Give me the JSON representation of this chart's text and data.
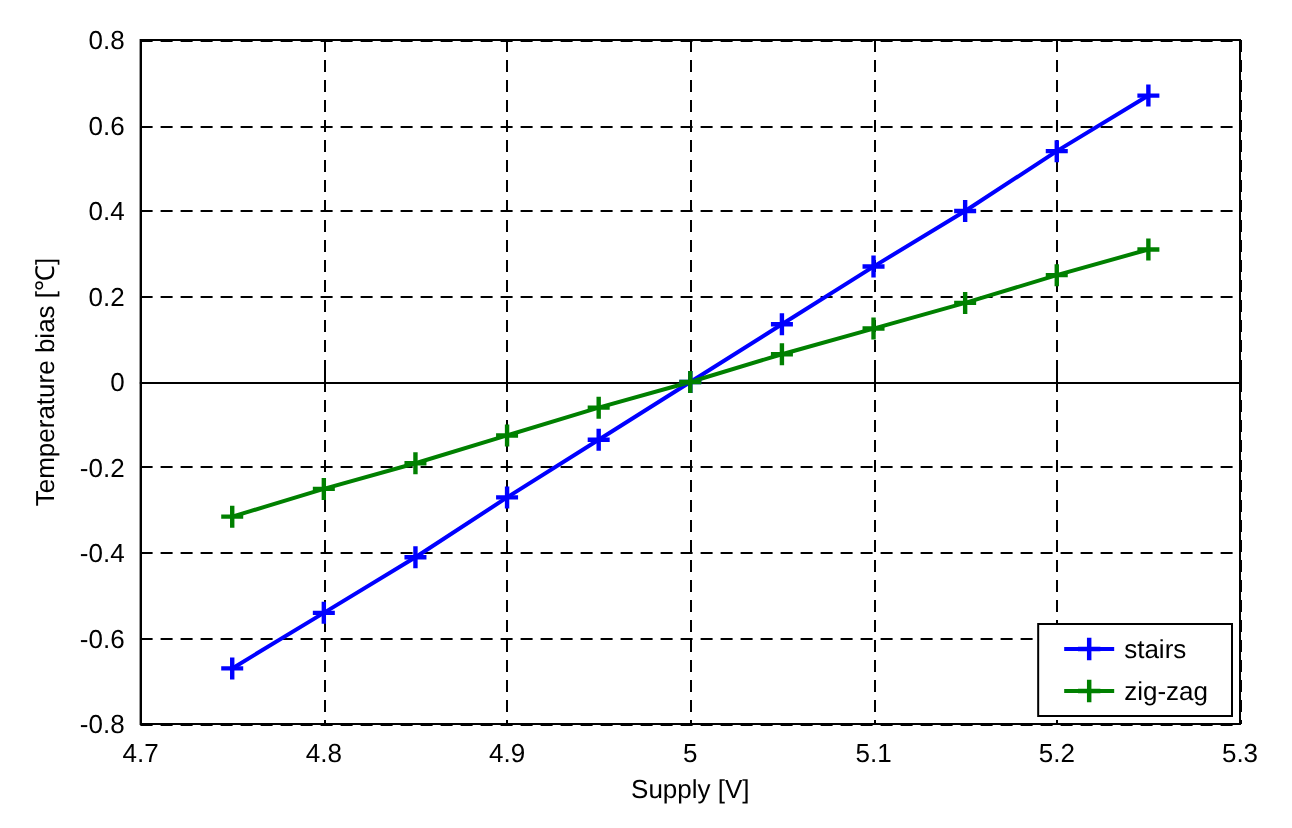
{
  "chart_data": {
    "type": "line",
    "xlabel": "Supply [V]",
    "ylabel": "Temperature bias [℃]",
    "x": [
      4.75,
      4.8,
      4.85,
      4.9,
      4.95,
      5,
      5.05,
      5.1,
      5.15,
      5.2,
      5.25
    ],
    "series": [
      {
        "name": "stairs",
        "color": "#0000ff",
        "marker": "cross",
        "values": [
          -0.67,
          -0.54,
          -0.41,
          -0.27,
          -0.135,
          0,
          0.135,
          0.27,
          0.4,
          0.54,
          0.67
        ]
      },
      {
        "name": "zig-zag",
        "color": "#008000",
        "marker": "cross",
        "values": [
          -0.315,
          -0.25,
          -0.19,
          -0.125,
          -0.06,
          0,
          0.065,
          0.125,
          0.185,
          0.25,
          0.31
        ]
      }
    ],
    "xlim": [
      4.7,
      5.3
    ],
    "xticks": [
      4.7,
      4.8,
      4.9,
      5,
      5.1,
      5.2,
      5.3
    ],
    "ylim": [
      -0.8,
      0.8
    ],
    "yticks": [
      -0.8,
      -0.6,
      -0.4,
      -0.2,
      0,
      0.2,
      0.4,
      0.6,
      0.8
    ],
    "grid": true,
    "legend": "bottom right",
    "line_style": "solid"
  }
}
